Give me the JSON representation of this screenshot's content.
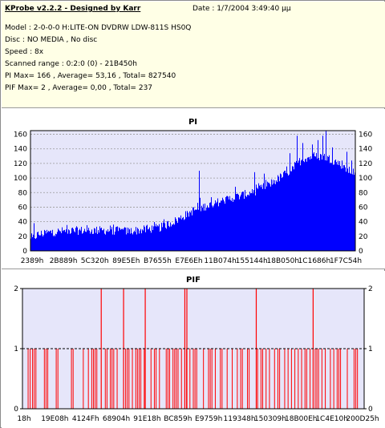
{
  "info": {
    "title": "KProbe v2.2.2 - Designed by Karr",
    "date": "Date : 1/7/2004 3:49:40 μμ",
    "lines": [
      "Model : 2-0-0-0 H:LITE-ON DVDRW LDW-811S   HS0Q",
      "Disc : NO MEDIA , No disc",
      "Speed : 8x",
      "Scanned range : 0:2:0 (0) - 21B450h",
      "PI Max= 166 , Average= 53,16 , Total= 827540",
      "PIF Max= 2 , Average= 0,00 , Total= 237"
    ]
  },
  "colors": {
    "info_background": "#ffffe6",
    "plot_background": "#e6e6fa",
    "pi_bars": "#0000ff",
    "pif_bars": "#ff0000",
    "threshold_line": "#000000"
  },
  "chart_data": [
    {
      "type": "bar",
      "title": "PI",
      "ylim": [
        0,
        165
      ],
      "yticks": [
        0,
        20,
        40,
        60,
        80,
        100,
        120,
        140,
        160
      ],
      "xtick_labels": [
        "2389h",
        "2B889h",
        "5C320h",
        "89E5Eh",
        "B7655h",
        "E7E6Eh",
        "11B074h",
        "155144h",
        "18B050h",
        "1C1686h",
        "1F7C54h"
      ],
      "grid": true,
      "legend": "none",
      "envelope": [
        {
          "position": 0.0,
          "value": 15
        },
        {
          "position": 0.02,
          "value": 22
        },
        {
          "position": 0.05,
          "value": 25
        },
        {
          "position": 0.1,
          "value": 27
        },
        {
          "position": 0.15,
          "value": 28
        },
        {
          "position": 0.2,
          "value": 28
        },
        {
          "position": 0.25,
          "value": 28
        },
        {
          "position": 0.3,
          "value": 27
        },
        {
          "position": 0.35,
          "value": 29
        },
        {
          "position": 0.4,
          "value": 32
        },
        {
          "position": 0.45,
          "value": 42
        },
        {
          "position": 0.5,
          "value": 55
        },
        {
          "position": 0.55,
          "value": 63
        },
        {
          "position": 0.6,
          "value": 70
        },
        {
          "position": 0.65,
          "value": 76
        },
        {
          "position": 0.7,
          "value": 83
        },
        {
          "position": 0.75,
          "value": 95
        },
        {
          "position": 0.8,
          "value": 110
        },
        {
          "position": 0.83,
          "value": 123
        },
        {
          "position": 0.85,
          "value": 128
        },
        {
          "position": 0.9,
          "value": 130
        },
        {
          "position": 0.93,
          "value": 125
        },
        {
          "position": 0.96,
          "value": 118
        },
        {
          "position": 0.98,
          "value": 110
        },
        {
          "position": 1.0,
          "value": 108
        }
      ],
      "noise_amplitude": 6,
      "spikes": [
        {
          "position": 0.01,
          "value": 38
        },
        {
          "position": 0.13,
          "value": 30
        },
        {
          "position": 0.28,
          "value": 30
        },
        {
          "position": 0.52,
          "value": 110
        },
        {
          "position": 0.63,
          "value": 88
        },
        {
          "position": 0.69,
          "value": 108
        },
        {
          "position": 0.72,
          "value": 106
        },
        {
          "position": 0.775,
          "value": 100
        },
        {
          "position": 0.8,
          "value": 134
        },
        {
          "position": 0.822,
          "value": 158
        },
        {
          "position": 0.84,
          "value": 148
        },
        {
          "position": 0.868,
          "value": 146
        },
        {
          "position": 0.885,
          "value": 152
        },
        {
          "position": 0.9,
          "value": 158
        },
        {
          "position": 0.912,
          "value": 166
        },
        {
          "position": 0.93,
          "value": 142
        },
        {
          "position": 0.96,
          "value": 124
        },
        {
          "position": 0.975,
          "value": 136
        },
        {
          "position": 0.99,
          "value": 124
        }
      ]
    },
    {
      "type": "bar",
      "title": "PIF",
      "ylim": [
        0,
        2
      ],
      "yticks": [
        0,
        1,
        2
      ],
      "xtick_labels": [
        "18h",
        "19E08h",
        "4124Fh",
        "68904h",
        "91E18h",
        "BC859h",
        "E9759h",
        "119348h",
        "150309h",
        "18B00Eh",
        "1C4E10h",
        "200D25h"
      ],
      "grid": true,
      "legend": "none",
      "threshold": 1,
      "ones": [
        0.012,
        0.018,
        0.025,
        0.03,
        0.035,
        0.06,
        0.065,
        0.07,
        0.095,
        0.1,
        0.14,
        0.145,
        0.175,
        0.19,
        0.2,
        0.205,
        0.21,
        0.215,
        0.24,
        0.245,
        0.255,
        0.26,
        0.265,
        0.275,
        0.3,
        0.305,
        0.31,
        0.32,
        0.33,
        0.335,
        0.34,
        0.345,
        0.355,
        0.375,
        0.385,
        0.39,
        0.4,
        0.42,
        0.425,
        0.43,
        0.44,
        0.445,
        0.45,
        0.455,
        0.465,
        0.475,
        0.48,
        0.49,
        0.5,
        0.505,
        0.51,
        0.53,
        0.545,
        0.55,
        0.555,
        0.565,
        0.58,
        0.585,
        0.6,
        0.615,
        0.63,
        0.64,
        0.645,
        0.66,
        0.665,
        0.69,
        0.7,
        0.705,
        0.715,
        0.725,
        0.74,
        0.75,
        0.755,
        0.77,
        0.78,
        0.79,
        0.8,
        0.81,
        0.82,
        0.83,
        0.835,
        0.845,
        0.86,
        0.865,
        0.87,
        0.88,
        0.89,
        0.905,
        0.915,
        0.925,
        0.93,
        0.935,
        0.955,
        0.975,
        0.98,
        0.985
      ],
      "twos": [
        0.228,
        0.294,
        0.358,
        0.475,
        0.481,
        0.686,
        0.854
      ]
    }
  ]
}
